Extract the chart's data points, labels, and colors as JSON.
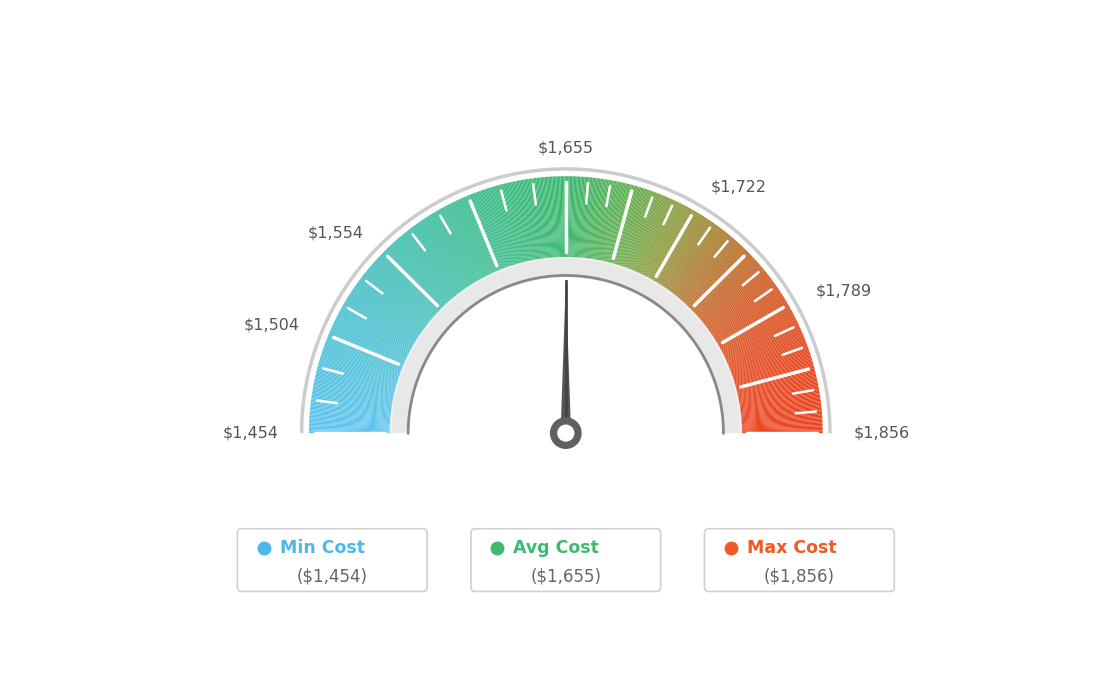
{
  "min_val": 1454,
  "max_val": 1856,
  "avg_val": 1655,
  "needle_val": 1655,
  "tick_values": [
    1454,
    1504,
    1554,
    1605,
    1655,
    1689,
    1722,
    1756,
    1789,
    1823,
    1856
  ],
  "label_values": [
    1454,
    1504,
    1554,
    1655,
    1722,
    1789,
    1856
  ],
  "label_texts": [
    "$1,454",
    "$1,504",
    "$1,554",
    "$1,655",
    "$1,722",
    "$1,789",
    "$1,856"
  ],
  "legend_items": [
    {
      "label": "Min Cost",
      "value": "($1,454)",
      "color": "#4db8e8"
    },
    {
      "label": "Avg Cost",
      "value": "($1,655)",
      "color": "#3dba6e"
    },
    {
      "label": "Max Cost",
      "value": "($1,856)",
      "color": "#f05a28"
    }
  ],
  "background_color": "#ffffff",
  "color_stops": [
    [
      0.0,
      [
        93,
        195,
        239
      ]
    ],
    [
      0.15,
      [
        77,
        193,
        210
      ]
    ],
    [
      0.3,
      [
        62,
        190,
        165
      ]
    ],
    [
      0.45,
      [
        57,
        185,
        121
      ]
    ],
    [
      0.5,
      [
        55,
        183,
        107
      ]
    ],
    [
      0.58,
      [
        95,
        175,
        80
      ]
    ],
    [
      0.65,
      [
        140,
        155,
        60
      ]
    ],
    [
      0.72,
      [
        175,
        120,
        45
      ]
    ],
    [
      0.8,
      [
        210,
        90,
        35
      ]
    ],
    [
      0.9,
      [
        230,
        70,
        30
      ]
    ],
    [
      1.0,
      [
        235,
        65,
        28
      ]
    ]
  ]
}
